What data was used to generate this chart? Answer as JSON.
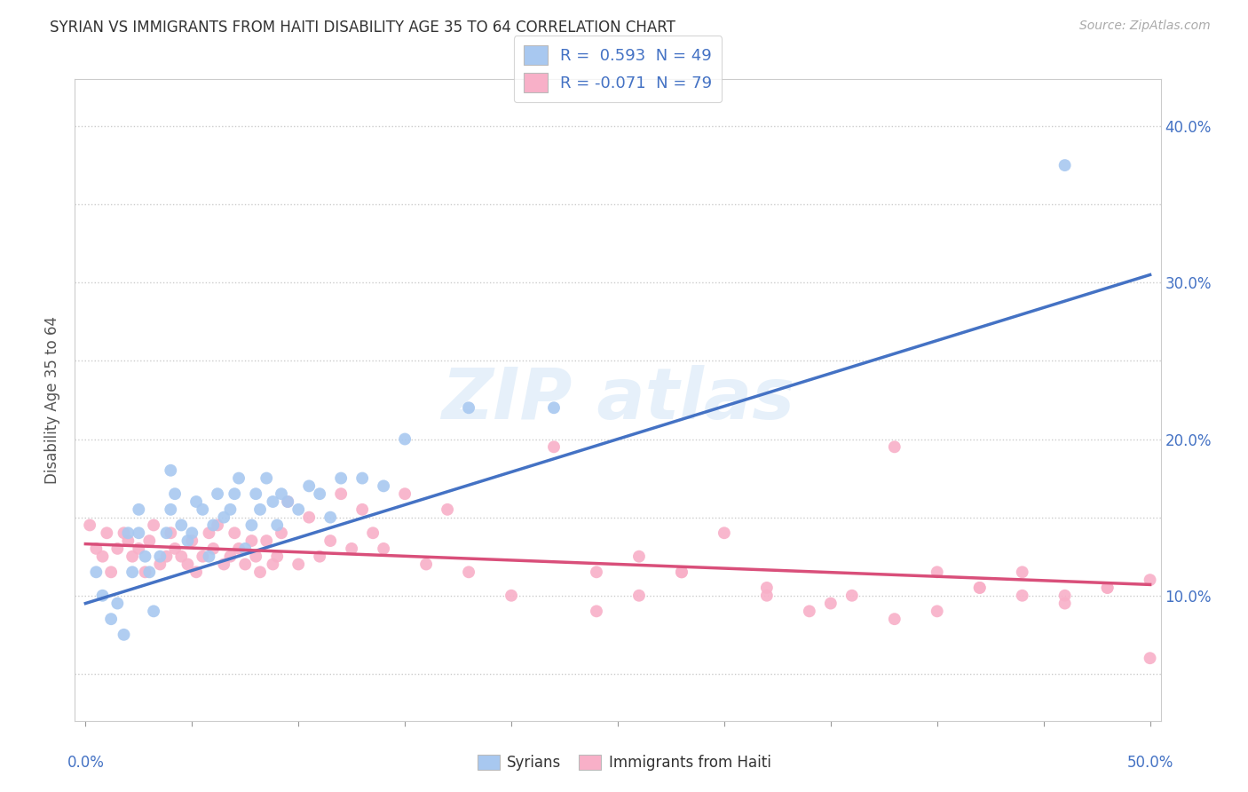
{
  "title": "SYRIAN VS IMMIGRANTS FROM HAITI DISABILITY AGE 35 TO 64 CORRELATION CHART",
  "source": "Source: ZipAtlas.com",
  "ylabel": "Disability Age 35 to 64",
  "legend_label1": "Syrians",
  "legend_label2": "Immigrants from Haiti",
  "r1": 0.593,
  "n1": 49,
  "r2": -0.071,
  "n2": 79,
  "blue_color": "#a8c8f0",
  "pink_color": "#f8b0c8",
  "blue_line_color": "#4472c4",
  "pink_line_color": "#d94f7a",
  "text_color": "#4472c4",
  "xlim": [
    -0.005,
    0.505
  ],
  "ylim": [
    0.02,
    0.43
  ],
  "right_yticks": [
    0.1,
    0.2,
    0.3,
    0.4
  ],
  "blue_scatter_x": [
    0.005,
    0.008,
    0.012,
    0.015,
    0.018,
    0.02,
    0.022,
    0.025,
    0.025,
    0.028,
    0.03,
    0.032,
    0.035,
    0.038,
    0.04,
    0.04,
    0.042,
    0.045,
    0.048,
    0.05,
    0.052,
    0.055,
    0.058,
    0.06,
    0.062,
    0.065,
    0.068,
    0.07,
    0.072,
    0.075,
    0.078,
    0.08,
    0.082,
    0.085,
    0.088,
    0.09,
    0.092,
    0.095,
    0.1,
    0.105,
    0.11,
    0.115,
    0.12,
    0.13,
    0.14,
    0.15,
    0.18,
    0.22,
    0.46
  ],
  "blue_scatter_y": [
    0.115,
    0.1,
    0.085,
    0.095,
    0.075,
    0.14,
    0.115,
    0.14,
    0.155,
    0.125,
    0.115,
    0.09,
    0.125,
    0.14,
    0.18,
    0.155,
    0.165,
    0.145,
    0.135,
    0.14,
    0.16,
    0.155,
    0.125,
    0.145,
    0.165,
    0.15,
    0.155,
    0.165,
    0.175,
    0.13,
    0.145,
    0.165,
    0.155,
    0.175,
    0.16,
    0.145,
    0.165,
    0.16,
    0.155,
    0.17,
    0.165,
    0.15,
    0.175,
    0.175,
    0.17,
    0.2,
    0.22,
    0.22,
    0.375
  ],
  "pink_scatter_x": [
    0.002,
    0.005,
    0.008,
    0.01,
    0.012,
    0.015,
    0.018,
    0.02,
    0.022,
    0.025,
    0.028,
    0.03,
    0.032,
    0.035,
    0.038,
    0.04,
    0.042,
    0.045,
    0.048,
    0.05,
    0.052,
    0.055,
    0.058,
    0.06,
    0.062,
    0.065,
    0.068,
    0.07,
    0.072,
    0.075,
    0.078,
    0.08,
    0.082,
    0.085,
    0.088,
    0.09,
    0.092,
    0.095,
    0.1,
    0.105,
    0.11,
    0.115,
    0.12,
    0.125,
    0.13,
    0.135,
    0.14,
    0.15,
    0.16,
    0.17,
    0.18,
    0.2,
    0.22,
    0.24,
    0.26,
    0.28,
    0.32,
    0.35,
    0.38,
    0.4,
    0.42,
    0.44,
    0.46,
    0.48,
    0.5,
    0.5,
    0.48,
    0.46,
    0.44,
    0.42,
    0.4,
    0.38,
    0.36,
    0.34,
    0.32,
    0.3,
    0.28,
    0.26,
    0.24
  ],
  "pink_scatter_y": [
    0.145,
    0.13,
    0.125,
    0.14,
    0.115,
    0.13,
    0.14,
    0.135,
    0.125,
    0.13,
    0.115,
    0.135,
    0.145,
    0.12,
    0.125,
    0.14,
    0.13,
    0.125,
    0.12,
    0.135,
    0.115,
    0.125,
    0.14,
    0.13,
    0.145,
    0.12,
    0.125,
    0.14,
    0.13,
    0.12,
    0.135,
    0.125,
    0.115,
    0.135,
    0.12,
    0.125,
    0.14,
    0.16,
    0.12,
    0.15,
    0.125,
    0.135,
    0.165,
    0.13,
    0.155,
    0.14,
    0.13,
    0.165,
    0.12,
    0.155,
    0.115,
    0.1,
    0.195,
    0.115,
    0.125,
    0.115,
    0.1,
    0.095,
    0.085,
    0.09,
    0.105,
    0.1,
    0.1,
    0.105,
    0.11,
    0.06,
    0.105,
    0.095,
    0.115,
    0.105,
    0.115,
    0.195,
    0.1,
    0.09,
    0.105,
    0.14,
    0.115,
    0.1,
    0.09
  ],
  "blue_line_x0": 0.0,
  "blue_line_y0": 0.095,
  "blue_line_x1": 0.5,
  "blue_line_y1": 0.305,
  "pink_line_x0": 0.0,
  "pink_line_y0": 0.133,
  "pink_line_x1": 0.5,
  "pink_line_y1": 0.107
}
